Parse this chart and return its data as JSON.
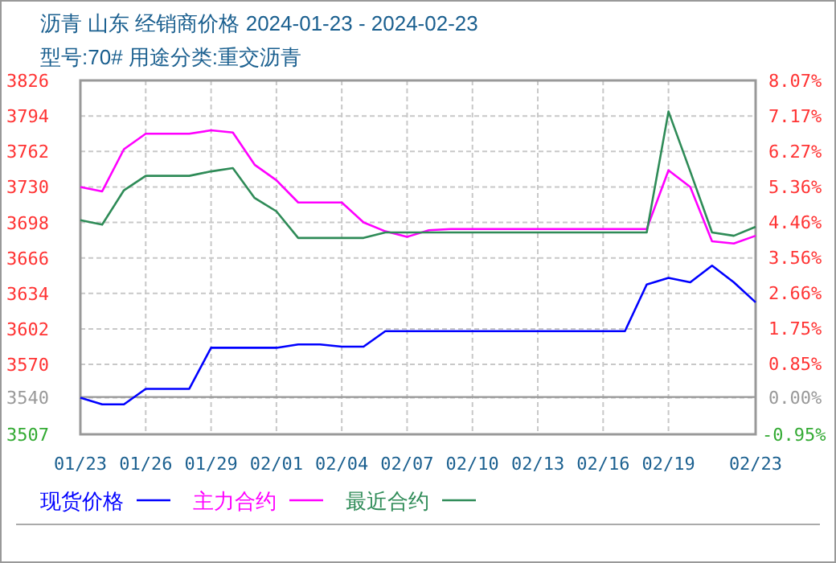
{
  "chart_data": {
    "type": "line",
    "title": "沥青 山东 经销商价格 2024-01-23 - 2024-02-23",
    "subtitle": "型号:70# 用途分类:重交沥青",
    "x": [
      "2024-01-23",
      "2024-01-24",
      "2024-01-25",
      "2024-01-26",
      "2024-01-27",
      "2024-01-28",
      "2024-01-29",
      "2024-01-30",
      "2024-01-31",
      "2024-02-01",
      "2024-02-02",
      "2024-02-03",
      "2024-02-04",
      "2024-02-05",
      "2024-02-06",
      "2024-02-07",
      "2024-02-08",
      "2024-02-09",
      "2024-02-10",
      "2024-02-11",
      "2024-02-12",
      "2024-02-13",
      "2024-02-14",
      "2024-02-15",
      "2024-02-16",
      "2024-02-17",
      "2024-02-18",
      "2024-02-19",
      "2024-02-20",
      "2024-02-21",
      "2024-02-22",
      "2024-02-23"
    ],
    "series": [
      {
        "name": "现货价格",
        "color": "#0000ff",
        "values": [
          3540,
          3534,
          3534,
          3548,
          3548,
          3548,
          3585,
          3585,
          3585,
          3585,
          3588,
          3588,
          3586,
          3586,
          3600,
          3600,
          3600,
          3600,
          3600,
          3600,
          3600,
          3600,
          3600,
          3600,
          3600,
          3600,
          3642,
          3648,
          3644,
          3659,
          3644,
          3626
        ]
      },
      {
        "name": "主力合约",
        "color": "#ff00ff",
        "values": [
          3730,
          3726,
          3764,
          3778,
          3778,
          3778,
          3781,
          3779,
          3750,
          3736,
          3716,
          3716,
          3716,
          3698,
          3690,
          3685,
          3691,
          3692,
          3692,
          3692,
          3692,
          3692,
          3692,
          3692,
          3692,
          3692,
          3692,
          3745,
          3730,
          3681,
          3679,
          3686
        ]
      },
      {
        "name": "最近合约",
        "color": "#2e8b57",
        "values": [
          3700,
          3696,
          3727,
          3740,
          3740,
          3740,
          3744,
          3747,
          3720,
          3708,
          3684,
          3684,
          3684,
          3684,
          3689,
          3689,
          3689,
          3689,
          3689,
          3689,
          3689,
          3689,
          3689,
          3689,
          3689,
          3689,
          3689,
          3798,
          3744,
          3689,
          3686,
          3694
        ]
      }
    ],
    "xlim": [
      "2024-01-23",
      "2024-02-23"
    ],
    "xticks": [
      {
        "value": "2024-01-23",
        "label": "01/23"
      },
      {
        "value": "2024-01-26",
        "label": "01/26"
      },
      {
        "value": "2024-01-29",
        "label": "01/29"
      },
      {
        "value": "2024-02-01",
        "label": "02/01"
      },
      {
        "value": "2024-02-04",
        "label": "02/04"
      },
      {
        "value": "2024-02-07",
        "label": "02/07"
      },
      {
        "value": "2024-02-10",
        "label": "02/10"
      },
      {
        "value": "2024-02-13",
        "label": "02/13"
      },
      {
        "value": "2024-02-16",
        "label": "02/16"
      },
      {
        "value": "2024-02-19",
        "label": "02/19"
      },
      {
        "value": "2024-02-23",
        "label": "02/23"
      }
    ],
    "ylim": [
      3507,
      3826
    ],
    "yticks": [
      3826,
      3794,
      3762,
      3730,
      3698,
      3666,
      3634,
      3602,
      3570,
      3540,
      3507
    ],
    "y2lim": [
      -0.95,
      8.07
    ],
    "y2ticks": [
      {
        "value": 8.07,
        "label": "8.07%"
      },
      {
        "value": 7.17,
        "label": "7.17%"
      },
      {
        "value": 6.27,
        "label": "6.27%"
      },
      {
        "value": 5.36,
        "label": "5.36%"
      },
      {
        "value": 4.46,
        "label": "4.46%"
      },
      {
        "value": 3.56,
        "label": "3.56%"
      },
      {
        "value": 2.66,
        "label": "2.66%"
      },
      {
        "value": 1.75,
        "label": "1.75%"
      },
      {
        "value": 0.85,
        "label": "0.85%"
      },
      {
        "value": 0,
        "label": "0.00%"
      },
      {
        "value": -0.95,
        "label": "-0.95%"
      }
    ],
    "ref_lines": [
      {
        "axis": "y2",
        "value": 0,
        "color": "#999999"
      }
    ],
    "grid": true,
    "legend": "bottom",
    "marker": "none",
    "line_style": "solid"
  }
}
